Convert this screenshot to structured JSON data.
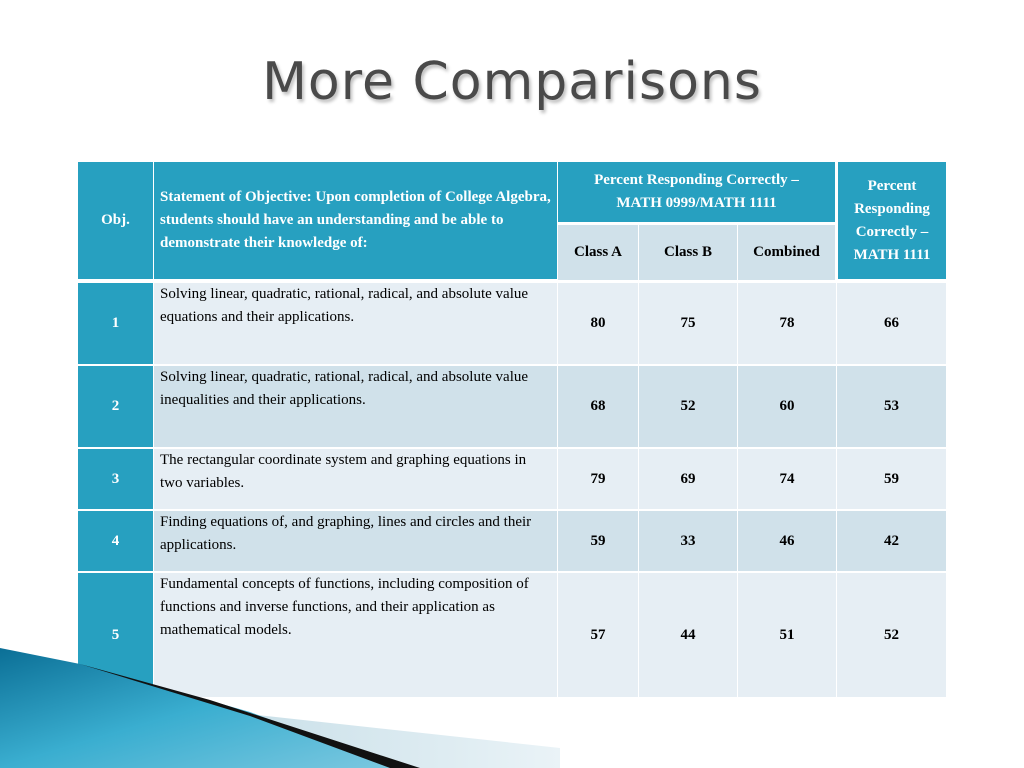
{
  "slide": {
    "title": "More Comparisons"
  },
  "table": {
    "header": {
      "obj": "Obj.",
      "statement": "Statement of Objective:  Upon completion of College Algebra, students should have an understanding and be able to demonstrate their knowledge of:",
      "group_math0999": "Percent Responding Correctly – MATH 0999/MATH 1111",
      "class_a": "Class A",
      "class_b": "Class B",
      "combined": "Combined",
      "math1111": "Percent Responding Correctly – MATH 1111"
    },
    "rows": [
      {
        "obj": "1",
        "statement": "Solving linear, quadratic, rational, radical, and absolute value equations and their applications.",
        "class_a": "80",
        "class_b": "75",
        "combined": "78",
        "math1111": "66"
      },
      {
        "obj": "2",
        "statement": "Solving linear, quadratic, rational, radical, and absolute value inequalities and their applications.",
        "class_a": "68",
        "class_b": "52",
        "combined": "60",
        "math1111": "53"
      },
      {
        "obj": "3",
        "statement": "The rectangular coordinate system and graphing equations in two variables.",
        "class_a": "79",
        "class_b": "69",
        "combined": "74",
        "math1111": "59"
      },
      {
        "obj": "4",
        "statement": "Finding equations of, and graphing, lines and circles and their applications.",
        "class_a": "59",
        "class_b": "33",
        "combined": "46",
        "math1111": "42"
      },
      {
        "obj": "5",
        "statement": "Fundamental concepts of functions, including composition of functions and inverse functions, and their application as mathematical models.",
        "class_a": "57",
        "class_b": "44",
        "combined": "51",
        "math1111": "52"
      }
    ]
  }
}
